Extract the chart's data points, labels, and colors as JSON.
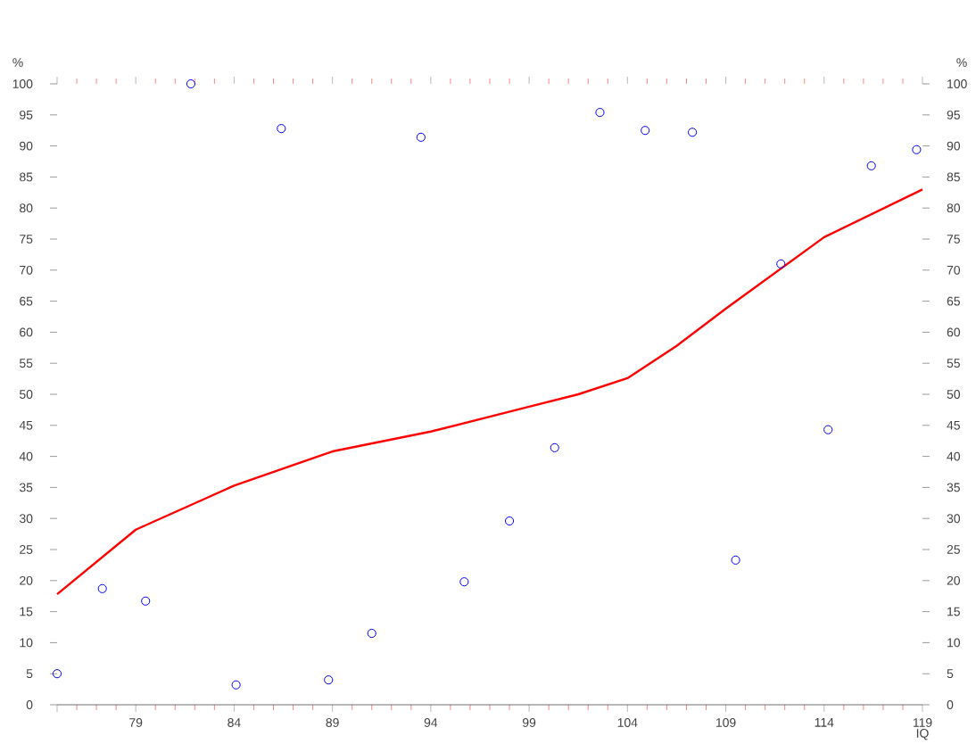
{
  "chart_data": {
    "type": "scatter",
    "xlabel": "IQ",
    "ylabel": "%",
    "y2label": "%",
    "xlim": [
      75,
      119
    ],
    "xticks": [
      {
        "value": 75,
        "label": null
      },
      79,
      84,
      89,
      94,
      99,
      104,
      109,
      114,
      119
    ],
    "ylim": [
      0,
      100
    ],
    "yticks": [
      0,
      5,
      10,
      15,
      20,
      25,
      30,
      35,
      40,
      45,
      50,
      55,
      60,
      65,
      70,
      75,
      80,
      85,
      90,
      95,
      100
    ],
    "y2lim": [
      0,
      100
    ],
    "y2ticks": [
      0,
      5,
      10,
      15,
      20,
      25,
      30,
      35,
      40,
      45,
      50,
      55,
      60,
      65,
      70,
      75,
      80,
      85,
      90,
      95,
      100
    ],
    "grid": false,
    "series": [
      {
        "type": "scatter",
        "color": "#0000ff",
        "marker": "circle",
        "x": [
          75,
          77.3,
          79.5,
          81.8,
          84.1,
          86.4,
          88.8,
          91.0,
          93.5,
          95.7,
          98.0,
          100.3,
          102.6,
          104.9,
          107.3,
          109.5,
          111.8,
          114.2,
          116.4,
          118.7
        ],
        "values": [
          5,
          18.7,
          16.7,
          100,
          3.2,
          92.8,
          4,
          11.5,
          91.4,
          19.8,
          29.6,
          41.4,
          95.4,
          92.5,
          92.2,
          23.3,
          71,
          44.3,
          86.8,
          89.4
        ]
      },
      {
        "type": "line",
        "color": "#ff0000",
        "marker": "none",
        "line_style": "solid",
        "x": [
          75,
          79,
          84,
          89,
          94,
          99,
          101.5,
          104,
          106.5,
          109,
          114,
          119
        ],
        "values": [
          17.8,
          28.2,
          35.3,
          40.8,
          44,
          48,
          50,
          52.6,
          57.8,
          63.8,
          75.3,
          83
        ]
      }
    ]
  }
}
